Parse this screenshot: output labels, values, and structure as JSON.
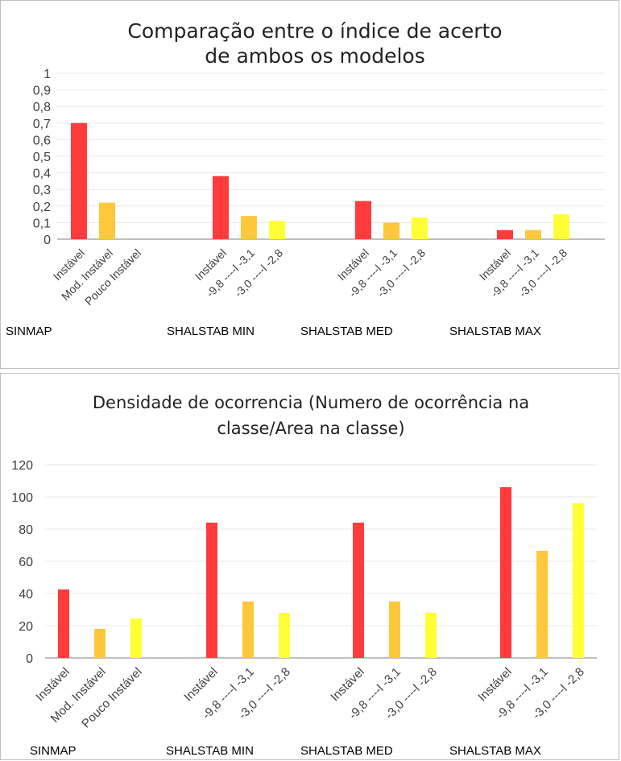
{
  "colors": {
    "red": "#ff3b3b",
    "orange": "#ffc83a",
    "yellow": "#ffff33",
    "grid": "#e8e8e8",
    "axis": "#bfbfbf"
  },
  "chart_data": [
    {
      "type": "bar",
      "title_line1": "Comparação entre o índice de acerto",
      "title_line2": "de ambos os modelos",
      "ylim": [
        0,
        1
      ],
      "yticks": [
        "0",
        "0,1",
        "0,2",
        "0,3",
        "0,4",
        "0,5",
        "0,6",
        "0,7",
        "0,8",
        "0,9",
        "1"
      ],
      "grid": true,
      "groups": [
        {
          "name": "SINMAP",
          "categories": [
            "Instável",
            "Mod. Instável",
            "Pouco Instável"
          ],
          "values": [
            0.7,
            0.22,
            0
          ]
        },
        {
          "name": "SHALSTAB MIN",
          "categories": [
            "Instável",
            "-9,8 ----l -3,1",
            "-3,0 ----l -2,8"
          ],
          "values": [
            0.38,
            0.14,
            0.11
          ]
        },
        {
          "name": "SHALSTAB MED",
          "categories": [
            "Instável",
            "-9,8 ----l -3,1",
            "-3,0 ----l -2,8"
          ],
          "values": [
            0.23,
            0.1,
            0.13
          ]
        },
        {
          "name": "SHALSTAB MAX",
          "categories": [
            "Instável",
            "-9,8 ----l -3,1",
            "-3,0 ----l -2,8"
          ],
          "values": [
            0.055,
            0.055,
            0.15
          ]
        }
      ]
    },
    {
      "type": "bar",
      "title_line1": "Densidade de ocorrencia (Numero de ocorrência na",
      "title_line2": "classe/Area na classe)",
      "ylim": [
        0,
        120
      ],
      "yticks": [
        "0",
        "20",
        "40",
        "60",
        "80",
        "100",
        "120"
      ],
      "grid": true,
      "groups": [
        {
          "name": "SINMAP",
          "categories": [
            "Instável",
            "Mod. Instável",
            "Pouco Instável"
          ],
          "values": [
            42.5,
            18,
            24.5
          ]
        },
        {
          "name": "SHALSTAB MIN",
          "categories": [
            "Instável",
            "-9,8 ----l -3,1",
            "-3,0 ----l -2,8"
          ],
          "values": [
            84,
            35,
            28
          ]
        },
        {
          "name": "SHALSTAB MED",
          "categories": [
            "Instável",
            "-9,8 ----l -3,1",
            "-3,0 ----l -2,8"
          ],
          "values": [
            84,
            35,
            28
          ]
        },
        {
          "name": "SHALSTAB MAX",
          "categories": [
            "Instável",
            "-9,8 ----l -3,1",
            "-3,0 ----l -2,8"
          ],
          "values": [
            106,
            66.5,
            96
          ]
        }
      ]
    }
  ]
}
